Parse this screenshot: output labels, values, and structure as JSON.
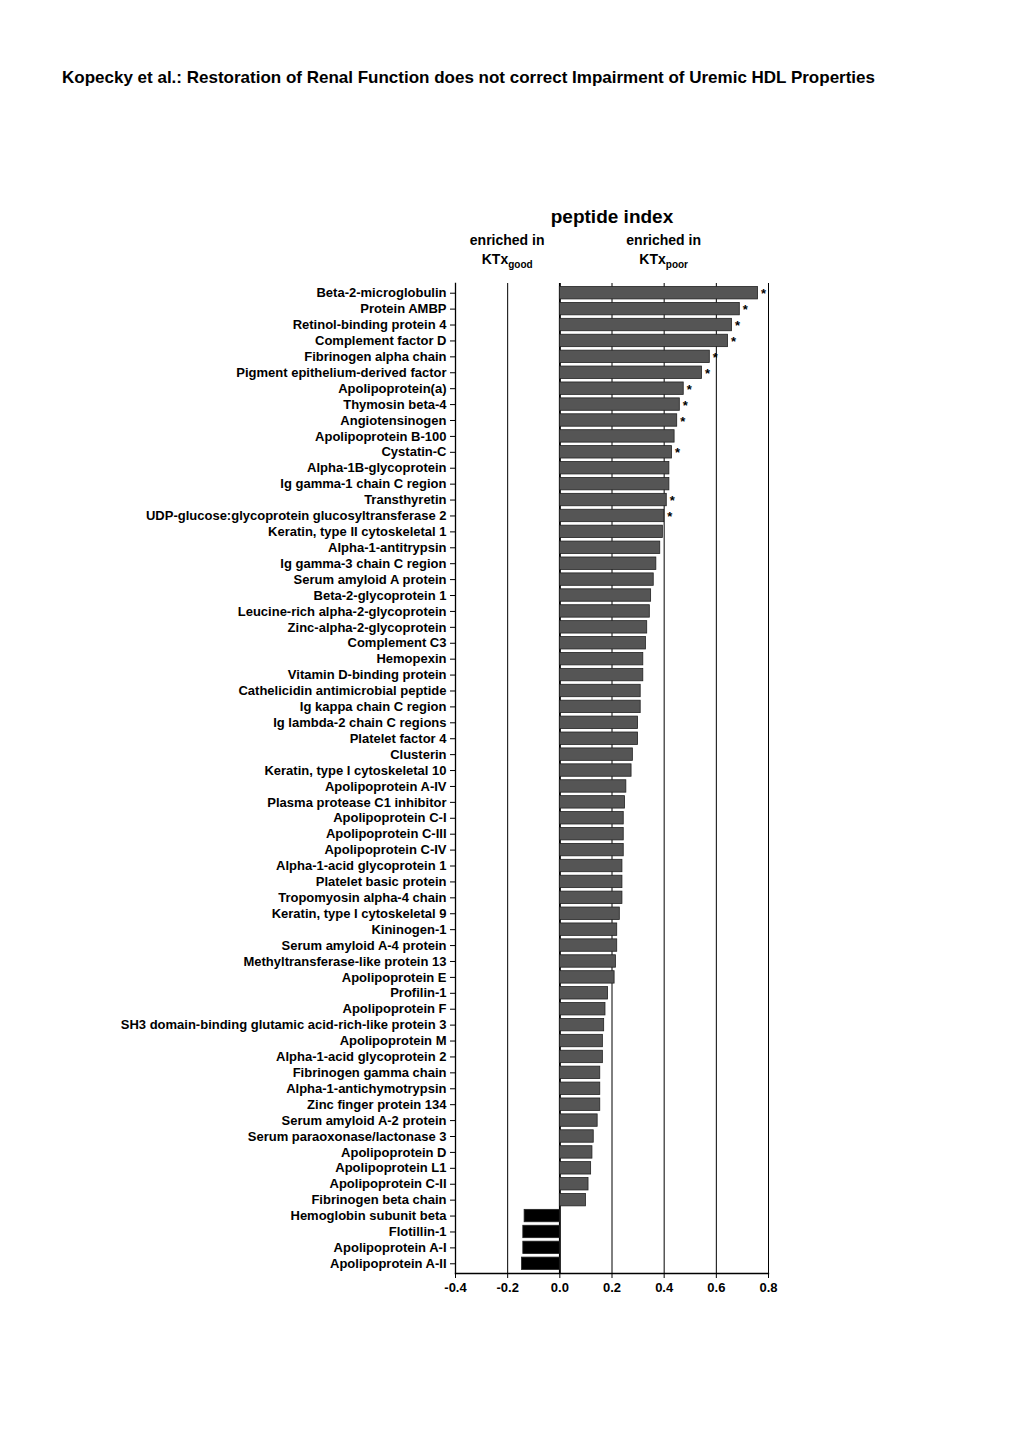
{
  "header": "Kopecky et al.: Restoration of Renal Function does not correct Impairment of Uremic HDL Properties",
  "panel_label": "A",
  "chart_data": {
    "type": "bar",
    "orientation": "horizontal",
    "title": "peptide index",
    "side_labels": [
      {
        "line1": "enriched in",
        "line2": "KTx",
        "subscript": "good"
      },
      {
        "line1": "enriched in",
        "line2": "KTx",
        "subscript": "poor"
      }
    ],
    "categories": [
      "Beta-2-microglobulin",
      "Protein AMBP",
      "Retinol-binding protein 4",
      "Complement factor D",
      "Fibrinogen alpha chain",
      "Pigment epithelium-derived factor",
      "Apolipoprotein(a)",
      "Thymosin beta-4",
      "Angiotensinogen",
      "Apolipoprotein B-100",
      "Cystatin-C",
      "Alpha-1B-glycoprotein",
      "Ig gamma-1 chain C region",
      "Transthyretin",
      "UDP-glucose:glycoprotein glucosyltransferase 2",
      "Keratin, type II cytoskeletal 1",
      "Alpha-1-antitrypsin",
      "Ig gamma-3 chain C region",
      "Serum amyloid A protein",
      "Beta-2-glycoprotein 1",
      "Leucine-rich alpha-2-glycoprotein",
      "Zinc-alpha-2-glycoprotein",
      "Complement C3",
      "Hemopexin",
      "Vitamin D-binding protein",
      "Cathelicidin antimicrobial peptide",
      "Ig kappa chain C region",
      "Ig lambda-2 chain C regions",
      "Platelet factor 4",
      "Clusterin",
      "Keratin, type I cytoskeletal 10",
      "Apolipoprotein A-IV",
      "Plasma protease C1 inhibitor",
      "Apolipoprotein C-I",
      "Apolipoprotein C-III",
      "Apolipoprotein C-IV",
      "Alpha-1-acid glycoprotein 1",
      "Platelet basic protein",
      "Tropomyosin alpha-4 chain",
      "Keratin, type I cytoskeletal 9",
      "Kininogen-1",
      "Serum amyloid A-4 protein",
      "Methyltransferase-like protein 13",
      "Apolipoprotein E",
      "Profilin-1",
      "Apolipoprotein F",
      "SH3 domain-binding glutamic acid-rich-like protein 3",
      "Apolipoprotein M",
      "Alpha-1-acid glycoprotein 2",
      "Fibrinogen gamma chain",
      "Alpha-1-antichymotrypsin",
      "Zinc finger protein 134",
      "Serum amyloid A-2 protein",
      "Serum paraoxonase/lactonase 3",
      "Apolipoprotein D",
      "Apolipoprotein L1",
      "Apolipoprotein C-II",
      "Fibrinogen beta chain",
      "Hemoglobin subunit beta",
      "Flotillin-1",
      "Apolipoprotein A-I",
      "Apolipoprotein A-II"
    ],
    "values": [
      0.76,
      0.69,
      0.66,
      0.645,
      0.575,
      0.545,
      0.475,
      0.46,
      0.45,
      0.44,
      0.43,
      0.42,
      0.42,
      0.41,
      0.4,
      0.395,
      0.385,
      0.37,
      0.36,
      0.35,
      0.345,
      0.335,
      0.33,
      0.32,
      0.32,
      0.31,
      0.31,
      0.3,
      0.3,
      0.28,
      0.275,
      0.255,
      0.25,
      0.245,
      0.245,
      0.245,
      0.24,
      0.24,
      0.24,
      0.23,
      0.22,
      0.22,
      0.215,
      0.21,
      0.185,
      0.175,
      0.17,
      0.165,
      0.165,
      0.155,
      0.155,
      0.155,
      0.145,
      0.13,
      0.125,
      0.12,
      0.11,
      0.1,
      -0.135,
      -0.14,
      -0.14,
      -0.145
    ],
    "significance": [
      "*",
      "*",
      "*",
      "*",
      "*",
      "*",
      "*",
      "*",
      "*",
      null,
      "*",
      null,
      null,
      "*",
      "*",
      null,
      null,
      null,
      null,
      null,
      null,
      null,
      null,
      null,
      null,
      null,
      null,
      null,
      null,
      null,
      null,
      null,
      null,
      null,
      null,
      null,
      null,
      null,
      null,
      null,
      null,
      null,
      null,
      null,
      null,
      null,
      null,
      null,
      null,
      null,
      null,
      null,
      null,
      null,
      null,
      null,
      null,
      null,
      null,
      null,
      null,
      null
    ],
    "colors": [
      "#555555",
      "#555555",
      "#555555",
      "#555555",
      "#555555",
      "#555555",
      "#555555",
      "#555555",
      "#555555",
      "#555555",
      "#555555",
      "#555555",
      "#555555",
      "#555555",
      "#555555",
      "#555555",
      "#555555",
      "#555555",
      "#555555",
      "#555555",
      "#555555",
      "#555555",
      "#555555",
      "#555555",
      "#555555",
      "#555555",
      "#555555",
      "#555555",
      "#555555",
      "#555555",
      "#555555",
      "#555555",
      "#555555",
      "#555555",
      "#555555",
      "#555555",
      "#555555",
      "#555555",
      "#555555",
      "#555555",
      "#555555",
      "#555555",
      "#555555",
      "#555555",
      "#555555",
      "#555555",
      "#555555",
      "#555555",
      "#555555",
      "#555555",
      "#555555",
      "#555555",
      "#555555",
      "#555555",
      "#555555",
      "#555555",
      "#555555",
      "#555555",
      "#000000",
      "#000000",
      "#000000",
      "#000000"
    ],
    "xlim": [
      -0.4,
      0.8
    ],
    "xticks": [
      -0.4,
      -0.2,
      {
        "value": 0,
        "label": "0.0"
      },
      0.2,
      0.4,
      0.6,
      0.8
    ],
    "grid": true
  }
}
